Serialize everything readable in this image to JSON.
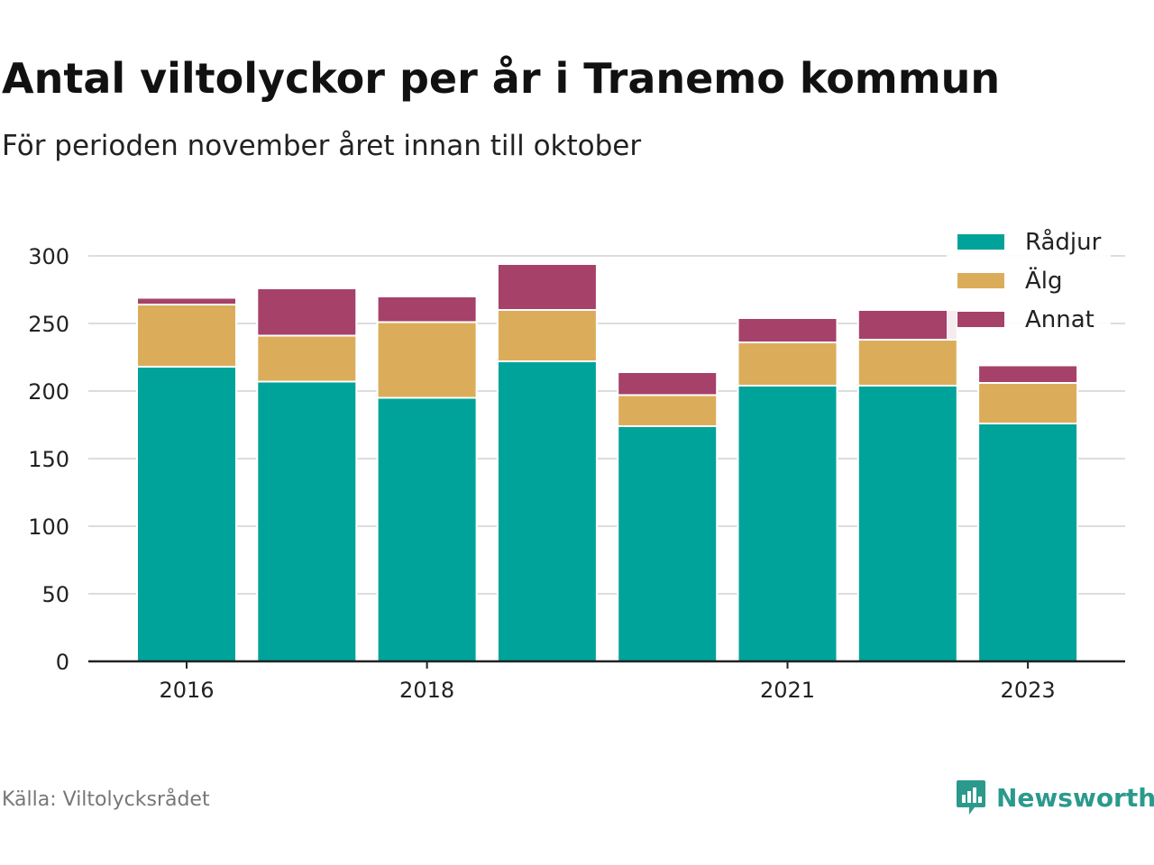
{
  "title": "Antal viltolyckor per år i Tranemo kommun",
  "subtitle": "För perioden november året innan till oktober",
  "source": "Källa: Viltolycksrådet",
  "brand": "Newsworthy",
  "colors": {
    "radjur": "#00a39a",
    "alg": "#dbad5a",
    "annat": "#a6416a",
    "grid": "#dddddd",
    "axis": "#222222",
    "brand": "#2b9a8c"
  },
  "chart_data": {
    "type": "bar",
    "stacked": true,
    "x": [
      2016,
      2017,
      2018,
      2019,
      2020,
      2021,
      2022,
      2023
    ],
    "tick_labels": [
      "2016",
      "2018",
      "2021",
      "2023"
    ],
    "tick_years": [
      2016,
      2018,
      2021,
      2023
    ],
    "series": [
      {
        "name": "Rådjur",
        "color": "#00a39a",
        "values": [
          218,
          207,
          195,
          222,
          174,
          204,
          204,
          176
        ]
      },
      {
        "name": "Älg",
        "color": "#dbad5a",
        "values": [
          46,
          34,
          56,
          38,
          23,
          32,
          34,
          30
        ]
      },
      {
        "name": "Annat",
        "color": "#a6416a",
        "values": [
          5,
          35,
          19,
          34,
          17,
          18,
          22,
          13
        ]
      }
    ],
    "ylim": [
      0,
      300
    ],
    "yticks": [
      0,
      50,
      100,
      150,
      200,
      250,
      300
    ],
    "grid": true,
    "legend_position": "top-right"
  }
}
